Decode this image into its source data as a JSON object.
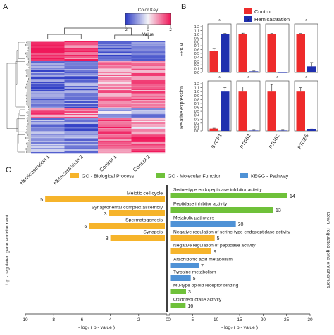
{
  "panel_labels": {
    "a": "A",
    "b": "B",
    "c": "C"
  },
  "colors": {
    "control": "#ee2b2b",
    "hemicastration": "#1f2fae",
    "go_bp": "#f6b42b",
    "go_mf": "#6fc13a",
    "kegg": "#4f92d6",
    "heat_low": "#2a39c4",
    "heat_mid": "#f4f4f8",
    "heat_high": "#f0185a"
  },
  "chart_data": [
    {
      "type": "heatmap",
      "panel": "A",
      "color_key": {
        "title": "Color Key",
        "label": "Value",
        "ticks": [
          -2,
          0,
          2
        ]
      },
      "columns": [
        "Hemicastration 1",
        "Hemicastration 2",
        "Control 1",
        "Control 2"
      ]
    },
    {
      "type": "bar",
      "panel": "B",
      "ylabel": "FPKM",
      "ylim": [
        0,
        1.2
      ],
      "yticks": [
        "0.0",
        "0.1",
        "0.2",
        "0.3",
        "0.4",
        "0.5",
        "0.6",
        "0.7",
        "0.8",
        "0.9",
        "1.0",
        "1.1",
        "1.2"
      ],
      "categories": [
        "SYCP1",
        "PTGS1",
        "PTGS2",
        "PTGES"
      ],
      "series": [
        {
          "name": "Control",
          "values": [
            0.57,
            1.0,
            1.0,
            1.0
          ],
          "errors": [
            0.06,
            0.03,
            0.02,
            0.02
          ]
        },
        {
          "name": "Hemicastration",
          "values": [
            1.0,
            0.03,
            0.0,
            0.16
          ],
          "errors": [
            0.02,
            0.01,
            0.0,
            0.1
          ]
        }
      ],
      "significance": [
        "*",
        "*",
        "*",
        "*"
      ]
    },
    {
      "type": "bar",
      "panel": "B",
      "ylabel": "Relative expression",
      "ylim": [
        0,
        1.2
      ],
      "yticks": [
        "0.0",
        "0.1",
        "0.2",
        "0.3",
        "0.4",
        "0.5",
        "0.6",
        "0.7",
        "0.8",
        "0.9",
        "1.0",
        "1.1",
        "1.2"
      ],
      "categories": [
        "SYCP1",
        "PTGS1",
        "PTGS2",
        "PTGES"
      ],
      "series": [
        {
          "name": "Control",
          "values": [
            0.06,
            1.0,
            1.0,
            1.0
          ],
          "errors": [
            0.01,
            0.12,
            0.18,
            0.1
          ]
        },
        {
          "name": "Hemicastration",
          "values": [
            1.0,
            0.01,
            0.01,
            0.04
          ],
          "errors": [
            0.1,
            0.01,
            0.01,
            0.01
          ]
        }
      ],
      "significance": [
        "*",
        "*",
        "*",
        "*"
      ]
    },
    {
      "type": "bar",
      "panel": "C",
      "legend": [
        {
          "name": "GO - Biological Process",
          "color": "#f6b42b"
        },
        {
          "name": "GO - Molecular Function",
          "color": "#6fc13a"
        },
        {
          "name": "KEGG - Pathway",
          "color": "#4f92d6"
        }
      ],
      "up": {
        "ylabel": "Up - regulated gene enrichement",
        "xlabel": "- log₂ ( p - value )",
        "xlim": [
          10,
          0
        ],
        "xticks": [
          "10",
          "8",
          "6",
          "4",
          "2",
          "0"
        ],
        "terms": [
          {
            "label": "Meiotic cell cycle",
            "value": 8.6,
            "count": "5",
            "group": "go_bp"
          },
          {
            "label": "Synaptonemal complex assembly",
            "value": 4.1,
            "count": "3",
            "group": "go_bp"
          },
          {
            "label": "Spermatogenesis",
            "value": 5.5,
            "count": "6",
            "group": "go_bp"
          },
          {
            "label": "Synapsis",
            "value": 4.0,
            "count": "3",
            "group": "go_bp"
          }
        ]
      },
      "down": {
        "ylabel": "Down - regulated gene enrichement",
        "xlabel": "- log₂ ( p - value )",
        "xlim": [
          0,
          30
        ],
        "xticks": [
          "0",
          "5",
          "10",
          "15",
          "20",
          "25",
          "30"
        ],
        "terms": [
          {
            "label": "Serine-type endopeptidase inhibitor activity",
            "value": 25.2,
            "count": "14",
            "group": "go_mf"
          },
          {
            "label": "Peptidase inhibitor activity",
            "value": 22.2,
            "count": "13",
            "group": "go_mf"
          },
          {
            "label": "Metabolic pathways",
            "value": 14.2,
            "count": "30",
            "group": "kegg"
          },
          {
            "label": "Negative regulation of serine-type endopeptidase activity",
            "value": 9.7,
            "count": "5",
            "group": "go_bp"
          },
          {
            "label": "Negative regulation of peptidase activity",
            "value": 9.0,
            "count": "9",
            "group": "go_bp"
          },
          {
            "label": "Arachidonic acid metabolism",
            "value": 6.3,
            "count": "7",
            "group": "kegg"
          },
          {
            "label": "Tyrosine metabolism",
            "value": 4.6,
            "count": "5",
            "group": "kegg"
          },
          {
            "label": "Mu-type opioid receptor binding",
            "value": 3.6,
            "count": "3",
            "group": "go_mf"
          },
          {
            "label": "Oxidoreductase activity",
            "value": 3.5,
            "count": "16",
            "group": "go_mf"
          }
        ]
      }
    }
  ]
}
